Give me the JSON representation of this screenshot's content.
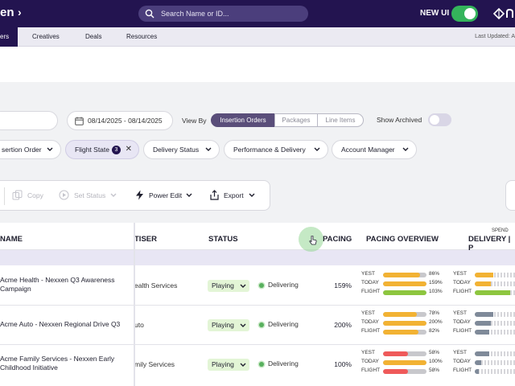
{
  "topbar": {
    "logo_text": "en",
    "logo_chevron": "›",
    "search_placeholder": "Search Name or ID...",
    "new_ui_label": "NEW UI",
    "new_ui_on": true,
    "brand_icon": "nexxen-logo-icon"
  },
  "nav": {
    "active_tab": "ers",
    "tabs": [
      {
        "label": "Creatives"
      },
      {
        "label": "Deals"
      },
      {
        "label": "Resources"
      }
    ],
    "last_updated": "Last Updated: A"
  },
  "filters": {
    "date_range": "08/14/2025 - 08/14/2025",
    "view_by_label": "View By",
    "view_by_options": [
      "Insertion Orders",
      "Packages",
      "Line Items"
    ],
    "view_by_selected": "Insertion Orders",
    "show_archived_label": "Show Archived",
    "show_archived_on": false,
    "chips": [
      {
        "label": "sertion Order"
      },
      {
        "label": "Flight State",
        "badge": "3",
        "active": true
      },
      {
        "label": "Delivery Status"
      },
      {
        "label": "Performance & Delivery"
      },
      {
        "label": "Account Manager"
      }
    ]
  },
  "toolbar": {
    "copy_label": "Copy",
    "set_status_label": "Set Status",
    "power_edit_label": "Power Edit",
    "export_label": "Export"
  },
  "table": {
    "headers": {
      "name": "NAME",
      "advertiser": "TISER",
      "status": "STATUS",
      "pacing": "PACING",
      "pacing_overview": "PACING OVERVIEW",
      "delivery": "DELIVERY | P",
      "spend": "SPEND"
    },
    "bar_colors": {
      "yellow": "#f2b233",
      "red": "#ef5a5a",
      "green": "#8dc63f",
      "gray": "#7f8a99"
    },
    "rows": [
      {
        "name_line1": "Acme Health - Nexxen Q3 Awareness",
        "name_line2": "Campaign",
        "advertiser": "ealth Services",
        "status": "Playing",
        "delivery": "Delivering",
        "pacing": "159%",
        "overview": [
          {
            "label": "YEST",
            "pct": "86%",
            "value": 86,
            "color": "#f2b233"
          },
          {
            "label": "TODAY",
            "pct": "159%",
            "value": 100,
            "color": "#f2b233"
          },
          {
            "label": "FLIGHT",
            "pct": "103%",
            "value": 100,
            "color": "#8dc63f"
          }
        ],
        "delivery_bars": [
          {
            "label": "YEST",
            "value": 0.45,
            "color": "#f2b233"
          },
          {
            "label": "TODAY",
            "value": 0.4,
            "color": "#f2b233"
          },
          {
            "label": "FLIGHT",
            "value": 0.88,
            "color": "#8dc63f"
          }
        ]
      },
      {
        "name_line1": "Acme Auto - Nexxen Regional Drive Q3",
        "name_line2": "",
        "advertiser": "uto",
        "status": "Playing",
        "delivery": "Delivering",
        "pacing": "200%",
        "overview": [
          {
            "label": "YEST",
            "pct": "78%",
            "value": 78,
            "color": "#f2b233"
          },
          {
            "label": "TODAY",
            "pct": "200%",
            "value": 100,
            "color": "#f2b233"
          },
          {
            "label": "FLIGHT",
            "pct": "82%",
            "value": 82,
            "color": "#f2b233"
          }
        ],
        "delivery_bars": [
          {
            "label": "YEST",
            "value": 0.45,
            "color": "#7f8a99"
          },
          {
            "label": "TODAY",
            "value": 0.4,
            "color": "#7f8a99"
          },
          {
            "label": "FLIGHT",
            "value": 0.35,
            "color": "#7f8a99"
          }
        ]
      },
      {
        "name_line1": "Acme Family Services - Nexxen Early",
        "name_line2": "Childhood Initiative",
        "advertiser": "mily Services",
        "status": "Playing",
        "delivery": "Delivering",
        "pacing": "100%",
        "overview": [
          {
            "label": "YEST",
            "pct": "58%",
            "value": 58,
            "color": "#ef5a5a"
          },
          {
            "label": "TODAY",
            "pct": "100%",
            "value": 100,
            "color": "#f2b233"
          },
          {
            "label": "FLIGHT",
            "pct": "58%",
            "value": 58,
            "color": "#ef5a5a"
          }
        ],
        "delivery_bars": [
          {
            "label": "YEST",
            "value": 0.35,
            "color": "#7f8a99"
          },
          {
            "label": "TODAY",
            "value": 0.15,
            "color": "#7f8a99"
          },
          {
            "label": "FLIGHT",
            "value": 0.1,
            "color": "#7f8a99"
          }
        ]
      }
    ]
  }
}
